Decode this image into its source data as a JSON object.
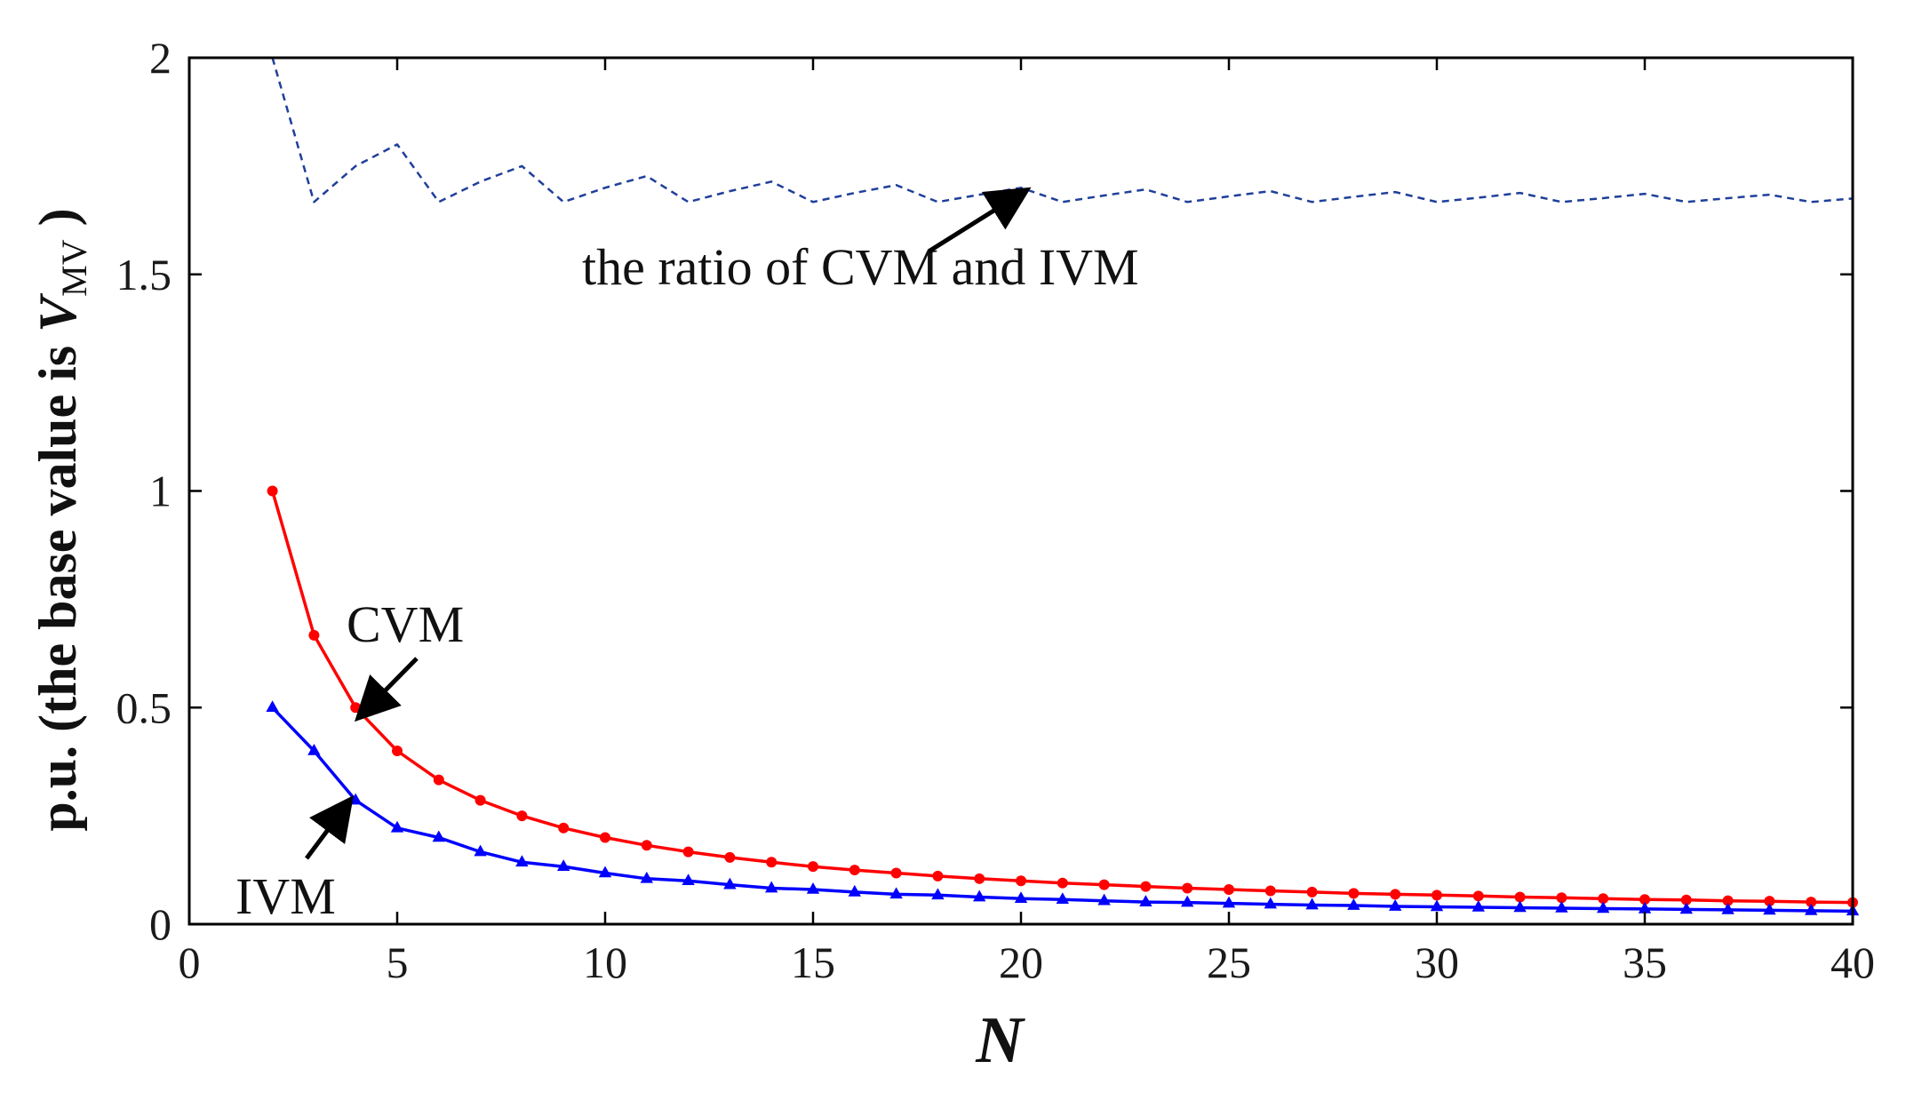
{
  "chart_data": {
    "type": "line",
    "xlabel": "N",
    "ylabel": {
      "prefix": "p.u. (the base value is ",
      "var": "V",
      "subscript": "MV",
      "suffix": " )"
    },
    "xlim": [
      0,
      40
    ],
    "ylim": [
      0,
      2
    ],
    "xticks": [
      "0",
      "5",
      "10",
      "15",
      "20",
      "25",
      "30",
      "35",
      "40"
    ],
    "xtick_values": [
      0,
      5,
      10,
      15,
      20,
      25,
      30,
      35,
      40
    ],
    "yticks": [
      "0",
      "0.5",
      "1",
      "1.5",
      "2"
    ],
    "ytick_values": [
      0,
      0.5,
      1,
      1.5,
      2
    ],
    "grid": false,
    "x": [
      2,
      3,
      4,
      5,
      6,
      7,
      8,
      9,
      10,
      11,
      12,
      13,
      14,
      15,
      16,
      17,
      18,
      19,
      20,
      21,
      22,
      23,
      24,
      25,
      26,
      27,
      28,
      29,
      30,
      31,
      32,
      33,
      34,
      35,
      36,
      37,
      38,
      39,
      40
    ],
    "series": [
      {
        "name": "CVM",
        "color": "#ff0000",
        "style": "solid",
        "marker": "star",
        "values": [
          1.0,
          0.667,
          0.5,
          0.4,
          0.333,
          0.286,
          0.25,
          0.222,
          0.2,
          0.182,
          0.167,
          0.154,
          0.143,
          0.133,
          0.125,
          0.118,
          0.111,
          0.105,
          0.1,
          0.095,
          0.091,
          0.087,
          0.083,
          0.08,
          0.077,
          0.074,
          0.071,
          0.069,
          0.067,
          0.065,
          0.0625,
          0.061,
          0.059,
          0.057,
          0.056,
          0.054,
          0.053,
          0.051,
          0.05
        ]
      },
      {
        "name": "IVM",
        "color": "#0000ff",
        "style": "solid",
        "marker": "triangle",
        "values": [
          0.5,
          0.4,
          0.286,
          0.222,
          0.2,
          0.167,
          0.143,
          0.133,
          0.118,
          0.105,
          0.1,
          0.091,
          0.083,
          0.08,
          0.074,
          0.069,
          0.067,
          0.0625,
          0.059,
          0.057,
          0.054,
          0.051,
          0.05,
          0.048,
          0.046,
          0.044,
          0.043,
          0.041,
          0.04,
          0.039,
          0.038,
          0.037,
          0.036,
          0.035,
          0.034,
          0.033,
          0.032,
          0.031,
          0.03
        ]
      },
      {
        "name": "the ratio of CVM and IVM",
        "color": "#1f3f9a",
        "style": "dashed",
        "marker": "none",
        "values": [
          2.0,
          1.667,
          1.75,
          1.8,
          1.667,
          1.714,
          1.75,
          1.667,
          1.7,
          1.727,
          1.667,
          1.692,
          1.714,
          1.667,
          1.688,
          1.706,
          1.667,
          1.684,
          1.7,
          1.667,
          1.682,
          1.696,
          1.667,
          1.68,
          1.692,
          1.667,
          1.679,
          1.69,
          1.667,
          1.677,
          1.688,
          1.667,
          1.676,
          1.686,
          1.667,
          1.676,
          1.684,
          1.667,
          1.675
        ]
      }
    ],
    "annotations": [
      {
        "text": "the ratio of CVM and IVM",
        "target_series": 2,
        "target_x": 20,
        "target_y": 1.7
      },
      {
        "text": "CVM",
        "target_series": 0,
        "target_x": 4,
        "target_y": 0.5
      },
      {
        "text": "IVM",
        "target_series": 1,
        "target_x": 4,
        "target_y": 0.29
      }
    ]
  }
}
